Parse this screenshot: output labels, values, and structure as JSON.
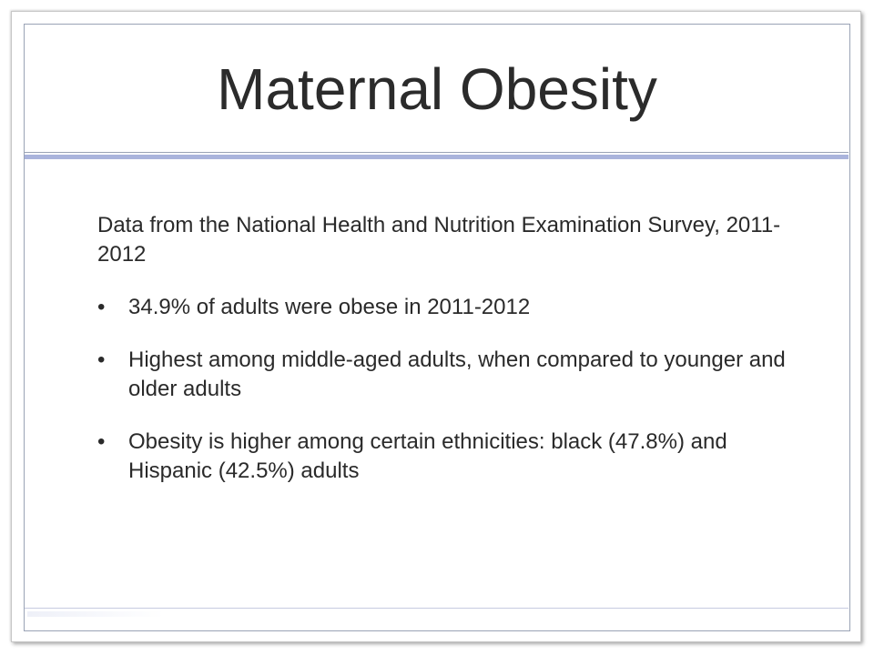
{
  "slide": {
    "title": "Maternal Obesity",
    "intro": "Data from the National Health and Nutrition Examination Survey, 2011-2012",
    "bullet_symbol": "•",
    "bullets": [
      {
        "text": "34.9% of adults were obese in 2011-2012"
      },
      {
        "text": "Highest among middle-aged adults, when compared to younger and older adults"
      },
      {
        "text": "Obesity is higher among certain ethnicities: black (47.8%) and Hispanic (42.5%) adults"
      }
    ]
  },
  "colors": {
    "accent_rule": "#aab4dc",
    "frame_border": "#9aa3b5",
    "text": "#2a2a2a"
  }
}
